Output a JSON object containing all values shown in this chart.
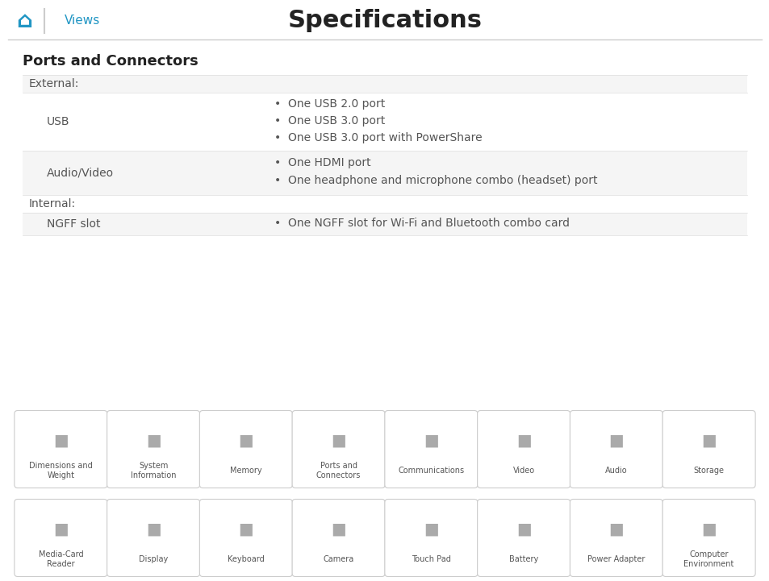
{
  "title": "Specifications",
  "nav_home_color": "#2196C4",
  "nav_views_text": "Views",
  "nav_views_color": "#2196C4",
  "section_title": "Ports and Connectors",
  "bg_color": "#ffffff",
  "row_bg_shaded": "#f5f5f5",
  "row_bg_white": "#ffffff",
  "header_color": "#333333",
  "text_color": "#555555",
  "label_color": "#555555",
  "table_rows": [
    {
      "type": "section_header",
      "label": "External:",
      "bg": "#f5f5f5"
    },
    {
      "type": "data_row",
      "label": "USB",
      "items": [
        "One USB 2.0 port",
        "One USB 3.0 port",
        "One USB 3.0 port with PowerShare"
      ],
      "bg": "#ffffff"
    },
    {
      "type": "data_row",
      "label": "Audio/Video",
      "items": [
        "One HDMI port",
        "One headphone and microphone combo (headset) port"
      ],
      "bg": "#f5f5f5"
    },
    {
      "type": "section_header",
      "label": "Internal:",
      "bg": "#ffffff"
    },
    {
      "type": "data_row",
      "label": "NGFF slot",
      "items": [
        "One NGFF slot for Wi-Fi and Bluetooth combo card"
      ],
      "bg": "#f5f5f5"
    }
  ],
  "nav_items_row1": [
    "Dimensions and\nWeight",
    "System\nInformation",
    "Memory",
    "Ports and\nConnectors",
    "Communications",
    "Video",
    "Audio",
    "Storage"
  ],
  "nav_items_row2": [
    "Media-Card\nReader",
    "Display",
    "Keyboard",
    "Camera",
    "Touch Pad",
    "Battery",
    "Power Adapter",
    "Computer\nEnvironment"
  ],
  "nav_icon_color": "#aaaaaa",
  "nav_box_border": "#cccccc",
  "nav_text_color": "#555555",
  "highlight_item": "Ports and\nConnectors"
}
